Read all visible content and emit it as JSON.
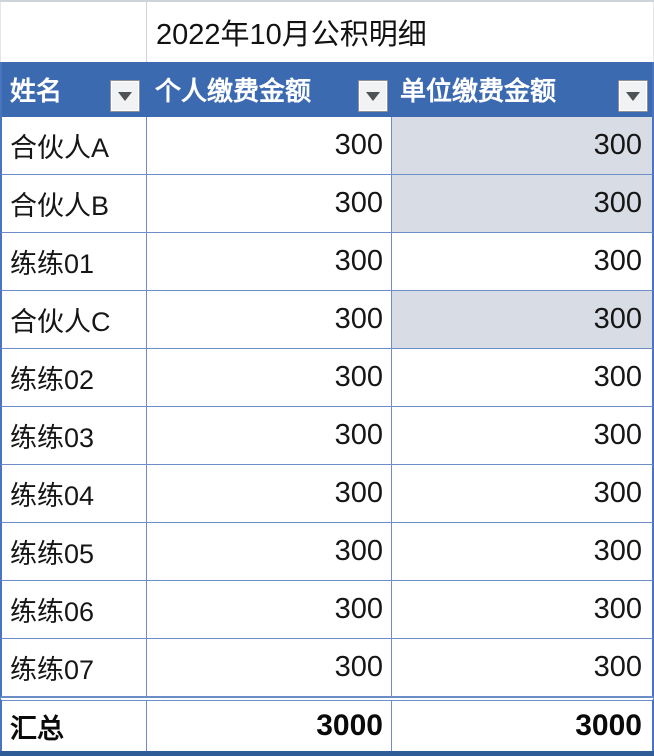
{
  "title": "2022年10月公积明细",
  "table": {
    "columns": [
      {
        "label": "姓名"
      },
      {
        "label": "个人缴费金额"
      },
      {
        "label": "单位缴费金额"
      }
    ],
    "rows": [
      {
        "name": "合伙人A",
        "personal": "300",
        "company": "300",
        "company_highlight": true
      },
      {
        "name": "合伙人B",
        "personal": "300",
        "company": "300",
        "company_highlight": true
      },
      {
        "name": "练练01",
        "personal": "300",
        "company": "300",
        "company_highlight": false
      },
      {
        "name": "合伙人C",
        "personal": "300",
        "company": "300",
        "company_highlight": true
      },
      {
        "name": "练练02",
        "personal": "300",
        "company": "300",
        "company_highlight": false
      },
      {
        "name": "练练03",
        "personal": "300",
        "company": "300",
        "company_highlight": false
      },
      {
        "name": "练练04",
        "personal": "300",
        "company": "300",
        "company_highlight": false
      },
      {
        "name": "练练05",
        "personal": "300",
        "company": "300",
        "company_highlight": false
      },
      {
        "name": "练练06",
        "personal": "300",
        "company": "300",
        "company_highlight": false
      },
      {
        "name": "练练07",
        "personal": "300",
        "company": "300",
        "company_highlight": false
      }
    ],
    "total": {
      "label": "汇总",
      "personal": "3000",
      "company": "3000"
    }
  },
  "icons": {
    "filter_dropdown": "triangle-down"
  },
  "colors": {
    "header_bg": "#3c6ab1",
    "header_text": "#ffffff",
    "grid_border": "#6d8dc8",
    "outer_border": "#4a74be",
    "highlight_cell_bg": "#d8dce4",
    "bottom_bar": "#2f5b96"
  }
}
